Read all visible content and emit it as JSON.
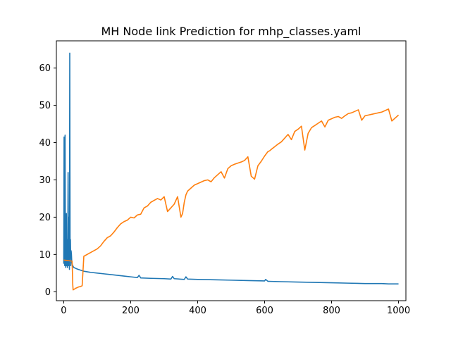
{
  "chart_data": {
    "type": "line",
    "title": "MH Node link Prediction for mhp_classes.yaml",
    "xlabel": "",
    "ylabel": "",
    "xlim": [
      -22,
      1022
    ],
    "ylim": [
      -2.4,
      67.3
    ],
    "grid": false,
    "x_ticks": [
      0,
      200,
      400,
      600,
      800,
      1000
    ],
    "y_ticks": [
      0,
      10,
      20,
      30,
      40,
      50,
      60
    ],
    "x_tick_labels": [
      "0",
      "200",
      "400",
      "600",
      "800",
      "1000"
    ],
    "y_tick_labels": [
      "0",
      "10",
      "20",
      "30",
      "40",
      "50",
      "60"
    ],
    "series": [
      {
        "color": "#1f77b4",
        "x": [
          0,
          1,
          2,
          3,
          4,
          5,
          6,
          7,
          8,
          9,
          10,
          11,
          12,
          13,
          14,
          15,
          16,
          17,
          18,
          19,
          20,
          21,
          22,
          23,
          24,
          25,
          26,
          27,
          28,
          30,
          35,
          40,
          50,
          60,
          80,
          100,
          120,
          150,
          180,
          200,
          220,
          225,
          230,
          260,
          300,
          320,
          325,
          330,
          360,
          365,
          370,
          400,
          450,
          500,
          550,
          600,
          603,
          610,
          650,
          700,
          750,
          800,
          850,
          900,
          950,
          970,
          1000
        ],
        "y": [
          7.5,
          41.5,
          10,
          7,
          42,
          9,
          6.5,
          8,
          21,
          7,
          14,
          6.5,
          10,
          32,
          7,
          12,
          20,
          6,
          64,
          9,
          14,
          7,
          11,
          10,
          8,
          7.5,
          7.2,
          7,
          6.8,
          6.5,
          6.3,
          6.1,
          5.8,
          5.5,
          5.2,
          5.0,
          4.8,
          4.5,
          4.2,
          4.0,
          3.8,
          4.4,
          3.7,
          3.6,
          3.5,
          3.4,
          4.1,
          3.5,
          3.3,
          4.0,
          3.4,
          3.3,
          3.2,
          3.1,
          3.0,
          2.9,
          3.3,
          2.8,
          2.7,
          2.6,
          2.5,
          2.4,
          2.3,
          2.2,
          2.2,
          2.1,
          2.1
        ]
      },
      {
        "color": "#ff7f0e",
        "x": [
          0,
          25,
          27,
          28,
          30,
          35,
          40,
          45,
          50,
          55,
          60,
          70,
          80,
          90,
          100,
          110,
          120,
          130,
          140,
          150,
          160,
          170,
          180,
          190,
          200,
          210,
          220,
          230,
          240,
          250,
          260,
          270,
          280,
          290,
          300,
          310,
          320,
          330,
          340,
          350,
          355,
          360,
          365,
          370,
          380,
          390,
          400,
          410,
          420,
          430,
          440,
          450,
          460,
          470,
          480,
          490,
          500,
          510,
          520,
          530,
          540,
          550,
          560,
          570,
          580,
          590,
          600,
          605,
          610,
          615,
          620,
          630,
          640,
          650,
          660,
          670,
          680,
          690,
          700,
          710,
          720,
          730,
          740,
          750,
          760,
          770,
          780,
          790,
          800,
          810,
          820,
          830,
          840,
          850,
          860,
          870,
          880,
          890,
          900,
          910,
          920,
          930,
          940,
          950,
          960,
          970,
          980,
          1000
        ],
        "y": [
          8.5,
          8.2,
          1.8,
          0.5,
          0.6,
          0.9,
          1.1,
          1.3,
          1.4,
          1.6,
          9.5,
          10,
          10.5,
          11,
          11.5,
          12.3,
          13.5,
          14.5,
          15,
          16,
          17.2,
          18.2,
          18.8,
          19.2,
          20,
          19.8,
          20.6,
          20.8,
          22.5,
          23,
          24,
          24.5,
          25,
          24.6,
          25.5,
          21.5,
          22.5,
          23.5,
          25.5,
          20,
          21,
          24,
          26,
          27,
          27.8,
          28.6,
          29,
          29.4,
          29.8,
          30,
          29.5,
          30.6,
          31.4,
          32.2,
          30.5,
          33,
          33.8,
          34.2,
          34.5,
          34.8,
          35.2,
          36.2,
          31,
          30.2,
          33.8,
          35,
          36.4,
          37,
          37.6,
          37.8,
          38.2,
          38.9,
          39.6,
          40.2,
          41.2,
          42.2,
          40.8,
          43,
          43.6,
          44.4,
          38,
          42.5,
          44,
          44.6,
          45.2,
          45.8,
          44.2,
          46,
          46.4,
          46.8,
          47,
          46.5,
          47.2,
          47.8,
          48,
          48.4,
          48.8,
          46,
          47.2,
          47.4,
          47.6,
          47.8,
          48,
          48.2,
          48.6,
          49,
          45.8,
          47.4
        ]
      }
    ]
  }
}
